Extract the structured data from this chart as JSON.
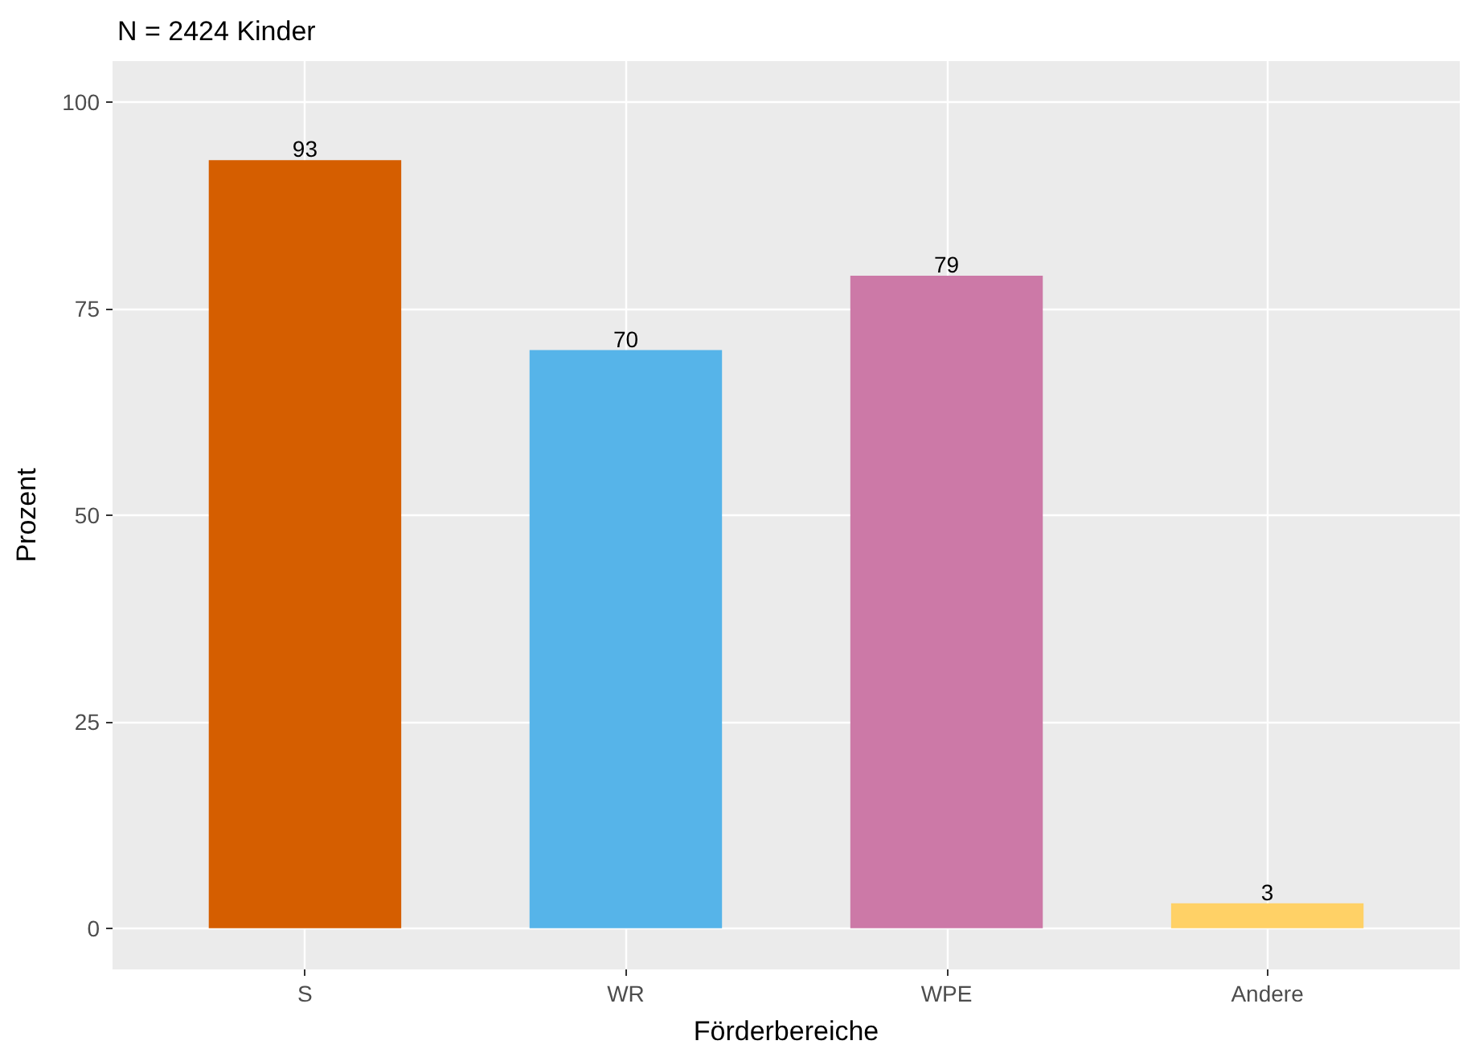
{
  "chart_data": {
    "type": "bar",
    "title": "N = 2424 Kinder",
    "xlabel": "Förderbereiche",
    "ylabel": "Prozent",
    "categories": [
      "S",
      "WR",
      "WPE",
      "Andere"
    ],
    "values": [
      93,
      70,
      79,
      3
    ],
    "colors": [
      "#d55e00",
      "#56b4e9",
      "#cc79a7",
      "#ffd166"
    ],
    "ylim": [
      -5,
      105
    ],
    "yticks": [
      0,
      25,
      50,
      75,
      100
    ],
    "grid": true,
    "data_labels": true
  }
}
